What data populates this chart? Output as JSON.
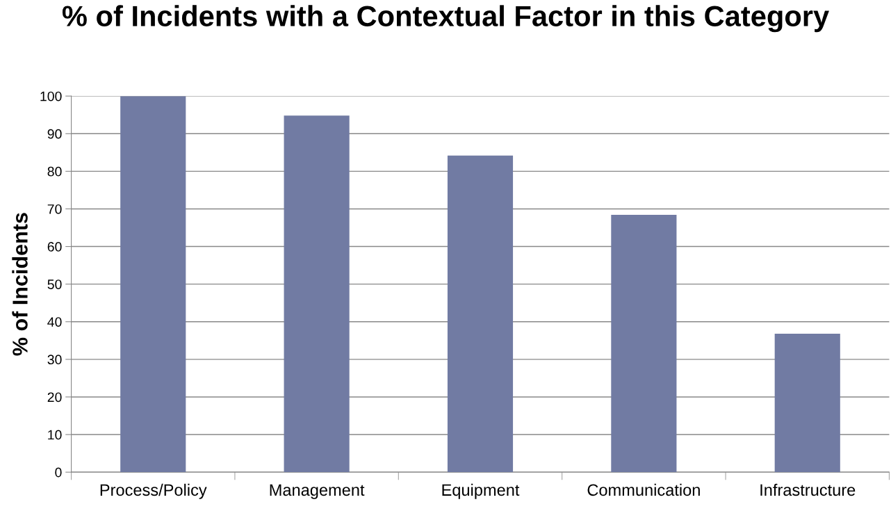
{
  "chart_data": {
    "type": "bar",
    "title": "% of Incidents with a Contextual Factor in this Category",
    "ylabel": "% of Incidents",
    "categories": [
      "Process/Policy",
      "Management",
      "Equipment",
      "Communication",
      "Infrastructure"
    ],
    "values": [
      100,
      94.8,
      84.2,
      68.4,
      36.8
    ],
    "color": "#717ba3",
    "ylim": [
      0,
      100
    ],
    "yticks": [
      0,
      10,
      20,
      30,
      40,
      50,
      60,
      70,
      80,
      90,
      100
    ],
    "grid": "y"
  }
}
